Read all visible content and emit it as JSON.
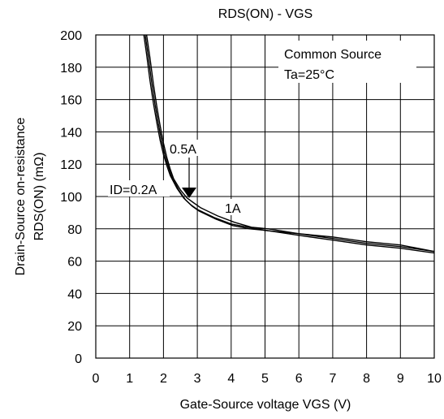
{
  "chart_data": {
    "type": "line",
    "title": "RDS(ON) - VGS",
    "xlabel": "Gate-Source voltage VGS (V)",
    "ylabel_line1": "Drain-Source on-resistance",
    "ylabel_line2": "RDS(ON) (mΩ)",
    "xlim": [
      0,
      10
    ],
    "ylim": [
      0,
      200
    ],
    "x_ticks": [
      "0",
      "1",
      "2",
      "3",
      "4",
      "5",
      "6",
      "7",
      "8",
      "9",
      "10"
    ],
    "y_ticks": [
      "0",
      "20",
      "40",
      "60",
      "80",
      "100",
      "120",
      "140",
      "160",
      "180",
      "200"
    ],
    "grid": true,
    "annotations": {
      "box_line1": "Common Source",
      "box_line2": "Ta=25°C",
      "label_id02": "ID=0.2A",
      "label_05": "0.5A",
      "label_1": "1A"
    },
    "series": [
      {
        "name": "ID=0.2A",
        "x": [
          1.42,
          1.5,
          1.6,
          1.7,
          1.8,
          1.9,
          2.0,
          2.1,
          2.2,
          2.4,
          2.6,
          2.8,
          3.0,
          3.5,
          4.0,
          4.5,
          5.0,
          6.0,
          7.0,
          8.0,
          9.0,
          10.0
        ],
        "y": [
          200,
          188,
          172,
          158,
          146,
          135,
          126,
          119,
          113,
          105,
          99,
          95,
          92,
          87,
          83,
          81,
          79,
          77,
          74,
          71,
          69,
          66
        ]
      },
      {
        "name": "0.5A",
        "x": [
          1.46,
          1.55,
          1.65,
          1.75,
          1.85,
          1.95,
          2.05,
          2.15,
          2.25,
          2.45,
          2.65,
          2.85,
          3.05,
          3.55,
          4.05,
          4.55,
          5.05,
          6.0,
          7.0,
          8.0,
          9.0,
          10.0
        ],
        "y": [
          200,
          187,
          171,
          157,
          145,
          134,
          125,
          118,
          112,
          104,
          98,
          94,
          91,
          86,
          82,
          80,
          79,
          76,
          73,
          70,
          68,
          65
        ]
      },
      {
        "name": "1A",
        "x": [
          1.5,
          1.6,
          1.7,
          1.8,
          1.9,
          2.0,
          2.1,
          2.2,
          2.3,
          2.5,
          2.7,
          2.9,
          3.1,
          3.6,
          4.1,
          4.6,
          5.1,
          6.0,
          7.0,
          8.0,
          9.0,
          10.0
        ],
        "y": [
          200,
          186,
          170,
          156,
          144,
          133,
          124,
          117,
          111,
          104,
          99,
          96,
          93,
          88,
          84,
          81,
          80,
          77,
          75,
          72,
          70,
          66
        ]
      }
    ]
  }
}
